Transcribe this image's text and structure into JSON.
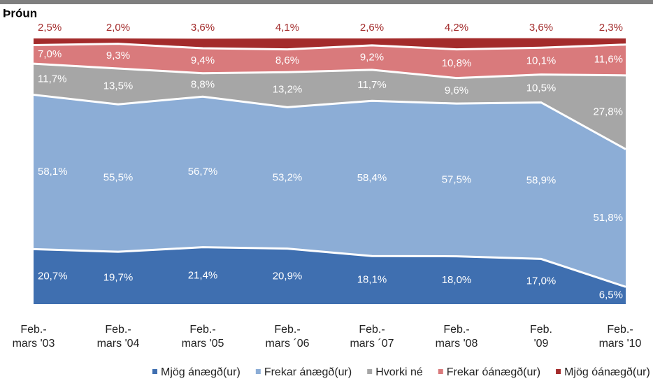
{
  "chart_data": {
    "type": "stacked_area",
    "title": "Þróun",
    "categories": [
      "Feb.-\nmars '03",
      "Feb.-\nmars '04",
      "Feb.-\nmars '05",
      "Feb.-\nmars ´06",
      "Feb.-\nmars ´07",
      "Feb.-\nmars '08",
      "Feb.\n'09",
      "Feb.-\nmars '10"
    ],
    "ylim": [
      0,
      100
    ],
    "series": [
      {
        "name": "Mjög ánægð(ur)",
        "color": "#3f6fb0",
        "label_color": "#ffffff",
        "values": [
          20.7,
          19.7,
          21.4,
          20.9,
          18.1,
          18.0,
          17.0,
          6.5
        ],
        "value_labels": [
          "20,7%",
          "19,7%",
          "21,4%",
          "20,9%",
          "18,1%",
          "18,0%",
          "17,0%",
          "6,5%"
        ]
      },
      {
        "name": "Frekar ánægð(ur)",
        "color": "#8cadd6",
        "label_color": "#ffffff",
        "values": [
          58.1,
          55.5,
          56.7,
          53.2,
          58.4,
          57.5,
          58.9,
          51.8
        ],
        "value_labels": [
          "58,1%",
          "55,5%",
          "56,7%",
          "53,2%",
          "58,4%",
          "57,5%",
          "58,9%",
          "51,8%"
        ]
      },
      {
        "name": "Hvorki né",
        "color": "#a6a6a6",
        "label_color": "#ffffff",
        "values": [
          11.7,
          13.5,
          8.8,
          13.2,
          11.7,
          9.6,
          10.5,
          27.8
        ],
        "value_labels": [
          "11,7%",
          "13,5%",
          "8,8%",
          "13,2%",
          "11,7%",
          "9,6%",
          "10,5%",
          "27,8%"
        ]
      },
      {
        "name": "Frekar óánægð(ur)",
        "color": "#d97a7c",
        "label_color": "#ffffff",
        "values": [
          7.0,
          9.3,
          9.4,
          8.6,
          9.2,
          10.8,
          10.1,
          11.6
        ],
        "value_labels": [
          "7,0%",
          "9,3%",
          "9,4%",
          "8,6%",
          "9,2%",
          "10,8%",
          "10,1%",
          "11,6%"
        ]
      },
      {
        "name": "Mjög óánægð(ur)",
        "color": "#a32b2b",
        "label_color": "#a32b2b",
        "values": [
          2.5,
          2.0,
          3.6,
          4.1,
          2.6,
          4.2,
          3.6,
          2.3
        ],
        "value_labels": [
          "2,5%",
          "2,0%",
          "3,6%",
          "4,1%",
          "2,6%",
          "4,2%",
          "3,6%",
          "2,3%"
        ]
      }
    ]
  }
}
